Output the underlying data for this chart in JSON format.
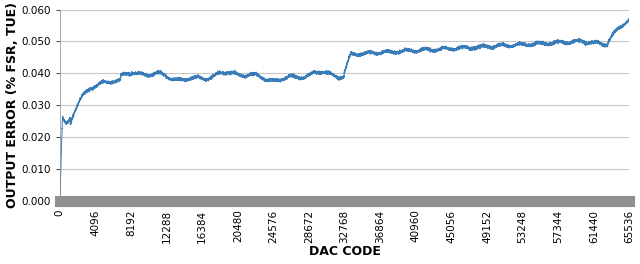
{
  "title": "",
  "xlabel": "DAC CODE",
  "ylabel": "OUTPUT ERROR (% FSR, TUE)",
  "xlim": [
    0,
    65536
  ],
  "ylim": [
    0.0,
    0.06
  ],
  "yticks": [
    0.0,
    0.01,
    0.02,
    0.03,
    0.04,
    0.05,
    0.06
  ],
  "xticks": [
    0,
    4096,
    8192,
    12288,
    16384,
    20480,
    24576,
    28672,
    32768,
    36864,
    40960,
    45056,
    49152,
    53248,
    57344,
    61440,
    65536
  ],
  "line_color": "#2E75B6",
  "bg_color": "#FFFFFF",
  "plot_bg_color": "#FFFFFF",
  "grid_color": "#C8C8C8",
  "outer_bg": "#000000",
  "gray_band_color": "#909090",
  "tick_label_fontsize": 7.5,
  "axis_label_fontsize": 9
}
